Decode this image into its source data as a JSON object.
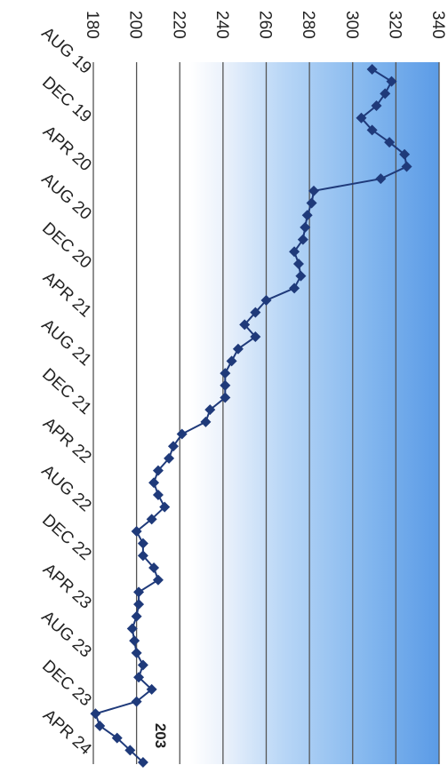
{
  "chart_data": {
    "type": "line",
    "orientation": "rotated-90-clockwise",
    "title": "",
    "xlabel": "",
    "ylabel": "",
    "ylim": [
      180,
      340
    ],
    "yticks": [
      180,
      200,
      220,
      240,
      260,
      280,
      300,
      320,
      340
    ],
    "ytick_labels": [
      "180",
      "200",
      "220",
      "240",
      "260",
      "280",
      "300",
      "320",
      "340"
    ],
    "xtick_labels": [
      "AUG 19",
      "DEC 19",
      "APR 20",
      "AUG 20",
      "DEC 20",
      "APR 21",
      "AUG 21",
      "DEC 21",
      "APR 22",
      "AUG 22",
      "DEC 22",
      "APR 23",
      "AUG 23",
      "DEC 23",
      "APR 24"
    ],
    "grid": true,
    "marker": "diamond",
    "line_color": "#1f3a7a",
    "background_gradient": [
      "#ffffff",
      "#5b9be6"
    ],
    "annotation": {
      "text": "203",
      "x": "May 24",
      "y": 203
    },
    "series": [
      {
        "x": [
          "Aug 19",
          "Sep 19",
          "Oct 19",
          "Nov 19",
          "Dec 19",
          "Jan 20",
          "Feb 20",
          "Mar 20",
          "Apr 20",
          "May 20",
          "Jun 20",
          "Jul 20",
          "Aug 20",
          "Sep 20",
          "Oct 20",
          "Nov 20",
          "Dec 20",
          "Jan 21",
          "Feb 21",
          "Mar 21",
          "Apr 21",
          "May 21",
          "Jun 21",
          "Jul 21",
          "Aug 21",
          "Sep 21",
          "Oct 21",
          "Nov 21",
          "Dec 21",
          "Jan 22",
          "Feb 22",
          "Mar 22",
          "Apr 22",
          "May 22",
          "Jun 22",
          "Jul 22",
          "Aug 22",
          "Sep 22",
          "Oct 22",
          "Nov 22",
          "Dec 22",
          "Jan 23",
          "Feb 23",
          "Mar 23",
          "Apr 23",
          "May 23",
          "Jun 23",
          "Jul 23",
          "Aug 23",
          "Sep 23",
          "Oct 23",
          "Nov 23",
          "Dec 23",
          "Jan 24",
          "Feb 24",
          "Mar 24",
          "Apr 24",
          "May 24"
        ],
        "values": [
          309,
          318,
          315,
          311,
          304,
          309,
          317,
          324,
          325,
          313,
          282,
          281,
          279,
          278,
          277,
          273,
          275,
          276,
          273,
          260,
          255,
          250,
          255,
          247,
          244,
          241,
          241,
          241,
          234,
          232,
          221,
          217,
          215,
          210,
          208,
          210,
          213,
          207,
          200,
          203,
          203,
          208,
          210,
          201,
          201,
          200,
          198,
          199,
          200,
          203,
          201,
          207,
          200,
          181,
          183,
          191,
          197,
          203
        ]
      }
    ]
  }
}
